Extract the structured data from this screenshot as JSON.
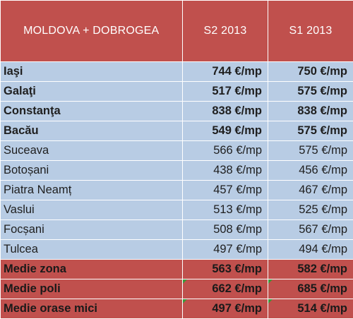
{
  "header": {
    "region": "MOLDOVA + DOBROGEA",
    "col1": "S2 2013",
    "col2": "S1 2013"
  },
  "rows": [
    {
      "city": "Iaşi",
      "s2": "744 €/mp",
      "s1": "750 €/mp"
    },
    {
      "city": "Galaţi",
      "s2": "517 €/mp",
      "s1": "575 €/mp"
    },
    {
      "city": "Constanţa",
      "s2": "838 €/mp",
      "s1": "838 €/mp"
    },
    {
      "city": "Bacău",
      "s2": "549 €/mp",
      "s1": "575 €/mp"
    },
    {
      "city": "Suceava",
      "s2": "566 €/mp",
      "s1": "575 €/mp"
    },
    {
      "city": "Botoșani",
      "s2": "438 €/mp",
      "s1": "456 €/mp"
    },
    {
      "city": "Piatra Neamț",
      "s2": "457 €/mp",
      "s1": "467 €/mp"
    },
    {
      "city": "Vaslui",
      "s2": "513 €/mp",
      "s1": "525 €/mp"
    },
    {
      "city": "Focșani",
      "s2": "508 €/mp",
      "s1": "567 €/mp"
    },
    {
      "city": "Tulcea",
      "s2": "497 €/mp",
      "s1": "494 €/mp"
    }
  ],
  "summary": [
    {
      "label": "Medie zona",
      "s2": "563 €/mp",
      "s1": "582 €/mp"
    },
    {
      "label": "Medie poli",
      "s2": "662 €/mp",
      "s1": "685 €/mp"
    },
    {
      "label": "Medie orase mici",
      "s2": "497 €/mp",
      "s1": "514 €/mp"
    }
  ],
  "colors": {
    "header_bg": "#c0504d",
    "row_bg": "#b8cce4",
    "summary_bg": "#c0504d",
    "corner_mark": "#3a9a3a"
  }
}
